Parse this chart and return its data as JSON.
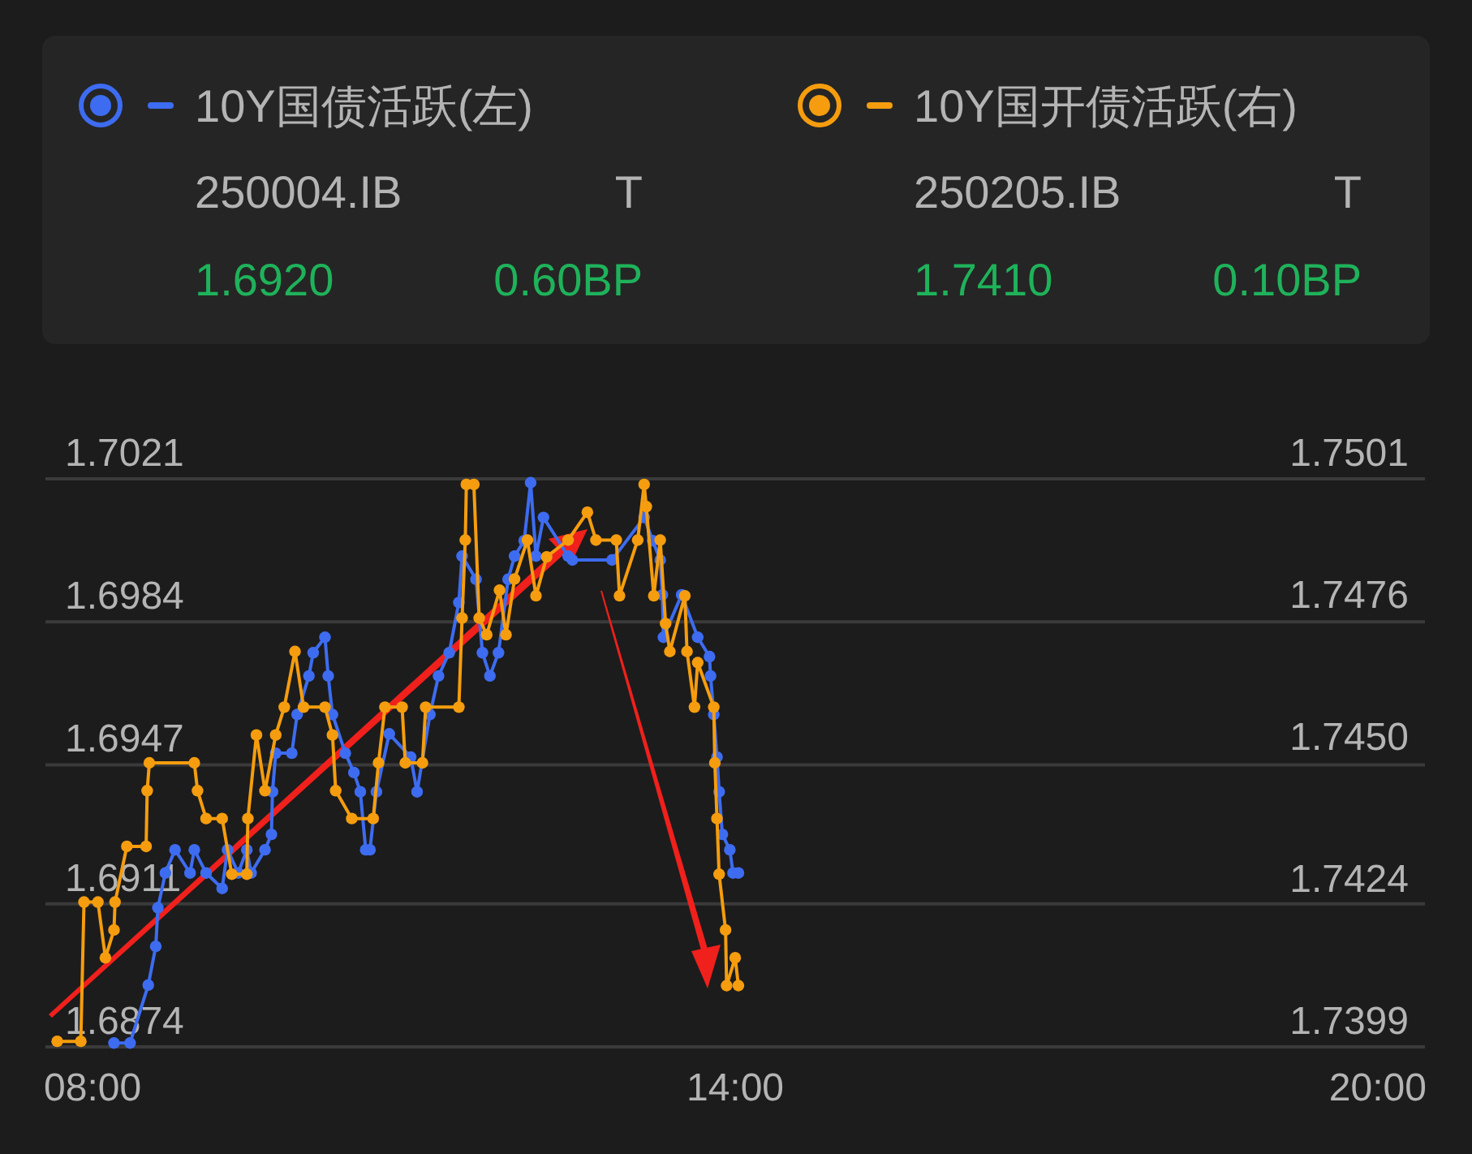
{
  "chart_data": {
    "type": "line",
    "xlim": [
      7.56,
      20.44
    ],
    "xticks": [
      {
        "value": 8,
        "label": "08:00"
      },
      {
        "value": 14,
        "label": "14:00"
      },
      {
        "value": 20,
        "label": "20:00"
      }
    ],
    "ylim": [
      1.6874,
      1.7021
    ],
    "yticks": [
      1.6874,
      1.6911,
      1.6947,
      1.6984,
      1.7021
    ],
    "y2lim": [
      1.7399,
      1.7501
    ],
    "y2ticks": [
      1.7399,
      {
        "value": 1.74245,
        "label": "1.7424"
      },
      {
        "value": 1.745,
        "label": "1.7450"
      },
      {
        "value": 1.74755,
        "label": "1.7476"
      },
      1.7501
    ],
    "grid": "y",
    "legend": "top",
    "marker": "circle",
    "annotations": [
      "250004.IB",
      "T",
      "1.6920",
      "0.60BP",
      "250205.IB",
      "T",
      "1.7410",
      "0.10BP"
    ],
    "series": [
      {
        "name": "10Y国债活跃(左)",
        "color": "#3d6cf0",
        "x": [
          8.2,
          8.35,
          8.52,
          8.59,
          8.61,
          8.68,
          8.77,
          8.91,
          8.95,
          9.06,
          9.21,
          9.26,
          9.36,
          9.44,
          9.48,
          9.61,
          9.67,
          9.68,
          9.71,
          9.86,
          9.91,
          10.02,
          10.06,
          10.17,
          10.2,
          10.24,
          10.36,
          10.44,
          10.5,
          10.55,
          10.59,
          10.65,
          10.77,
          10.97,
          11.03,
          11.15,
          11.23,
          11.33,
          11.42,
          11.45,
          11.58,
          11.64,
          11.71,
          11.79,
          11.88,
          11.94,
          12.03,
          12.09,
          12.14,
          12.21,
          12.44,
          12.48,
          12.85,
          13.15,
          13.23,
          13.3,
          13.32,
          13.33,
          13.5,
          13.65,
          13.76,
          13.77,
          13.8,
          13.83,
          13.85,
          13.88,
          13.95,
          13.98,
          14.03
        ],
        "values": [
          1.6875,
          1.6875,
          1.689,
          1.69,
          1.691,
          1.6919,
          1.6925,
          1.6919,
          1.6925,
          1.6919,
          1.6915,
          1.6925,
          1.6919,
          1.6925,
          1.6919,
          1.6925,
          1.6929,
          1.694,
          1.695,
          1.695,
          1.696,
          1.697,
          1.6976,
          1.698,
          1.697,
          1.696,
          1.695,
          1.6945,
          1.694,
          1.6925,
          1.6925,
          1.694,
          1.6955,
          1.6949,
          1.694,
          1.696,
          1.697,
          1.6976,
          1.6989,
          1.7001,
          1.6995,
          1.6976,
          1.697,
          1.6976,
          1.6995,
          1.7001,
          1.7005,
          1.702,
          1.7001,
          1.7011,
          1.7001,
          1.7,
          1.7,
          1.7011,
          1.7005,
          1.7,
          1.6991,
          1.698,
          1.6991,
          1.698,
          1.6975,
          1.697,
          1.696,
          1.6949,
          1.694,
          1.6929,
          1.6925,
          1.6919,
          1.6919
        ]
      },
      {
        "name": "10Y国开债活跃(右)",
        "color": "#f59d0e",
        "axis": "y2",
        "x": [
          7.67,
          7.89,
          7.92,
          8.05,
          8.12,
          8.2,
          8.21,
          8.32,
          8.5,
          8.51,
          8.53,
          8.95,
          8.98,
          9.06,
          9.21,
          9.3,
          9.44,
          9.45,
          9.53,
          9.61,
          9.71,
          9.79,
          9.89,
          9.97,
          10.17,
          10.24,
          10.27,
          10.42,
          10.62,
          10.67,
          10.73,
          10.89,
          10.92,
          11.08,
          11.11,
          11.42,
          11.45,
          11.48,
          11.49,
          11.56,
          11.61,
          11.68,
          11.8,
          11.86,
          11.94,
          12.06,
          12.14,
          12.24,
          12.44,
          12.62,
          12.7,
          12.89,
          12.92,
          13.09,
          13.15,
          13.17,
          13.24,
          13.3,
          13.35,
          13.39,
          13.53,
          13.55,
          13.62,
          13.65,
          13.8,
          13.81,
          13.83,
          13.85,
          13.91,
          13.92,
          14.0,
          14.03
        ],
        "values": [
          1.74,
          1.74,
          1.7425,
          1.7425,
          1.7415,
          1.742,
          1.7425,
          1.7435,
          1.7435,
          1.7445,
          1.745,
          1.745,
          1.7445,
          1.744,
          1.744,
          1.743,
          1.743,
          1.744,
          1.7455,
          1.7445,
          1.7455,
          1.746,
          1.747,
          1.746,
          1.746,
          1.7455,
          1.7445,
          1.744,
          1.744,
          1.745,
          1.746,
          1.746,
          1.745,
          1.745,
          1.746,
          1.746,
          1.7476,
          1.749,
          1.75,
          1.75,
          1.7476,
          1.7473,
          1.7481,
          1.7473,
          1.7483,
          1.749,
          1.748,
          1.7487,
          1.749,
          1.7495,
          1.749,
          1.749,
          1.748,
          1.749,
          1.75,
          1.7496,
          1.748,
          1.749,
          1.7475,
          1.747,
          1.748,
          1.747,
          1.746,
          1.7468,
          1.746,
          1.745,
          1.744,
          1.743,
          1.742,
          1.741,
          1.7415,
          1.741
        ]
      }
    ]
  }
}
